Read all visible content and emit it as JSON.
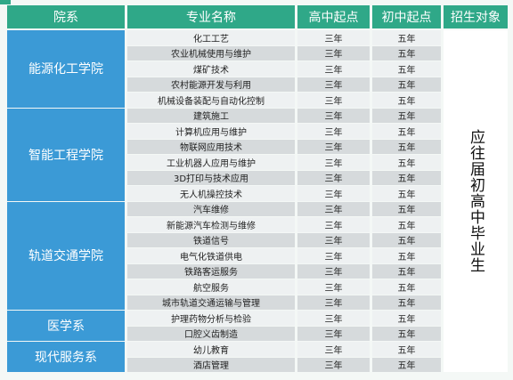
{
  "headers": {
    "dept": "院系",
    "major": "专业名称",
    "high": "高中起点",
    "junior": "初中起点",
    "target": "招生对象"
  },
  "departments": [
    {
      "name": "能源化工学院",
      "majors": [
        {
          "name": "化工工艺",
          "high": "三年",
          "junior": "五年"
        },
        {
          "name": "农业机械使用与维护",
          "high": "三年",
          "junior": "五年"
        },
        {
          "name": "煤矿技术",
          "high": "三年",
          "junior": "五年"
        },
        {
          "name": "农村能源开发与利用",
          "high": "三年",
          "junior": "五年"
        },
        {
          "name": "机械设备装配与自动化控制",
          "high": "三年",
          "junior": "五年"
        }
      ]
    },
    {
      "name": "智能工程学院",
      "majors": [
        {
          "name": "建筑施工",
          "high": "三年",
          "junior": "五年"
        },
        {
          "name": "计算机应用与维护",
          "high": "三年",
          "junior": "五年"
        },
        {
          "name": "物联网应用技术",
          "high": "三年",
          "junior": "五年"
        },
        {
          "name": "工业机器人应用与维护",
          "high": "三年",
          "junior": "五年"
        },
        {
          "name": "3D打印与技术应用",
          "high": "三年",
          "junior": "五年"
        },
        {
          "name": "无人机操控技术",
          "high": "三年",
          "junior": "五年"
        }
      ]
    },
    {
      "name": "轨道交通学院",
      "majors": [
        {
          "name": "汽车维修",
          "high": "三年",
          "junior": "五年"
        },
        {
          "name": "新能源汽车检测与维修",
          "high": "三年",
          "junior": "五年"
        },
        {
          "name": "铁道信号",
          "high": "三年",
          "junior": "五年"
        },
        {
          "name": "电气化铁道供电",
          "high": "三年",
          "junior": "五年"
        },
        {
          "name": "铁路客运服务",
          "high": "三年",
          "junior": "五年"
        },
        {
          "name": "航空服务",
          "high": "三年",
          "junior": "五年"
        },
        {
          "name": "城市轨道交通运输与管理",
          "high": "三年",
          "junior": "五年"
        }
      ]
    },
    {
      "name": "医学系",
      "majors": [
        {
          "name": "护理药物分析与检验",
          "high": "三年",
          "junior": "五年"
        },
        {
          "name": "口腔义齿制造",
          "high": "三年",
          "junior": "五年"
        }
      ]
    },
    {
      "name": "现代服务系",
      "majors": [
        {
          "name": "幼儿教育",
          "high": "三年",
          "junior": "五年"
        },
        {
          "name": "酒店管理",
          "high": "三年",
          "junior": "五年"
        }
      ]
    }
  ],
  "target_text": "应往届初高中毕业生"
}
